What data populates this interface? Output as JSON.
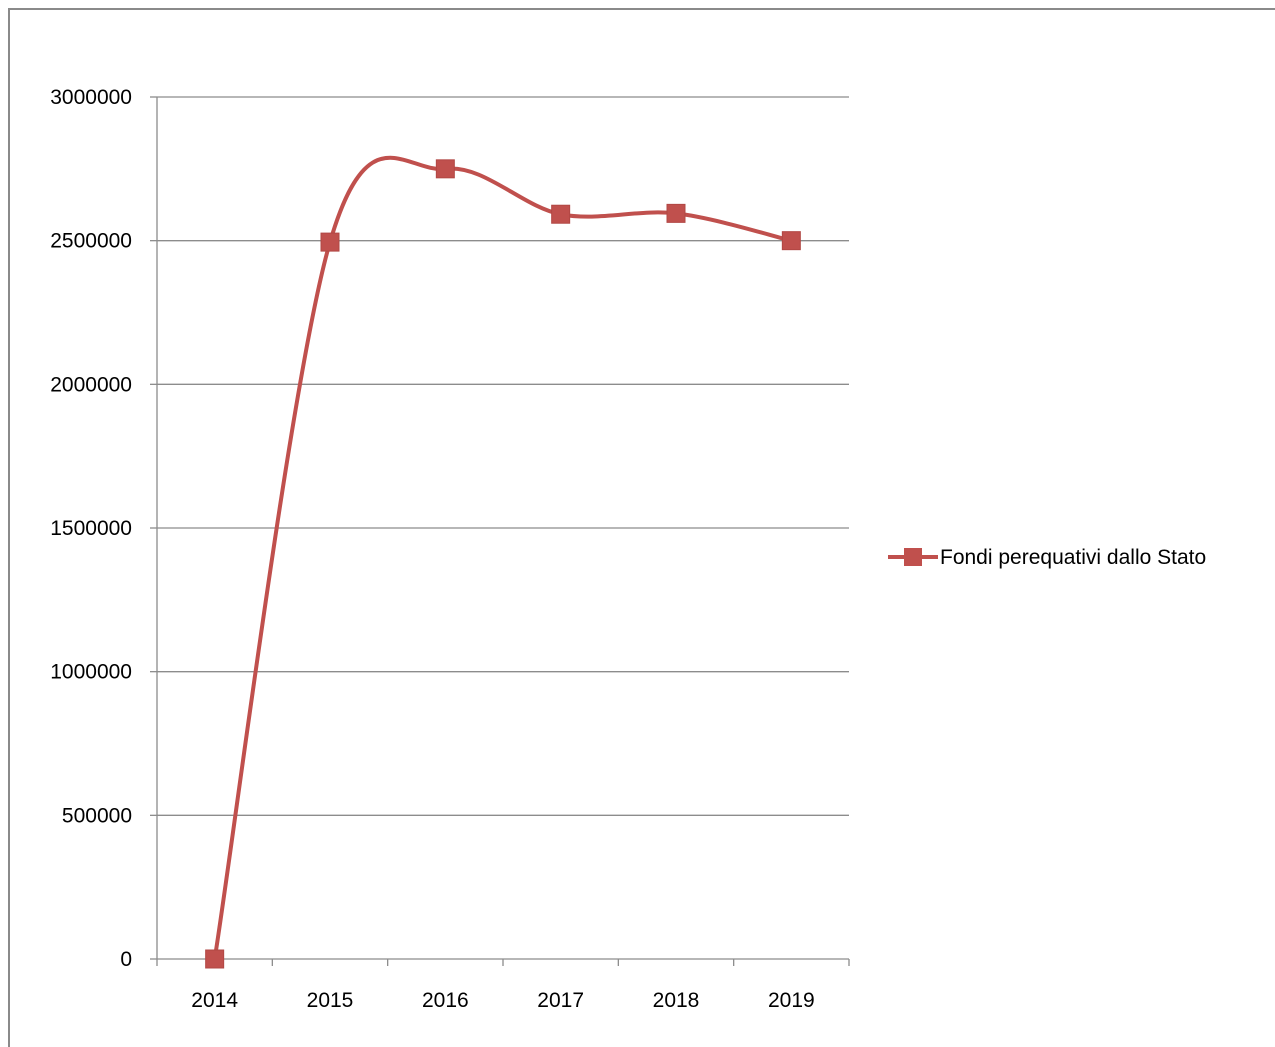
{
  "chart_data": {
    "type": "line",
    "smooth": true,
    "categories": [
      "2014",
      "2015",
      "2016",
      "2017",
      "2018",
      "2019"
    ],
    "series": [
      {
        "name": "Fondi perequativi dallo Stato",
        "values": [
          0,
          2495000,
          2750000,
          2592000,
          2595000,
          2500000
        ],
        "color": "#C0504D",
        "marker": "square"
      }
    ],
    "yticks": [
      "0",
      "500000",
      "1000000",
      "1500000",
      "2000000",
      "2500000",
      "3000000"
    ],
    "ylim": [
      0,
      3000000
    ],
    "grid": "horizontal",
    "legend": "right",
    "title": "",
    "xlabel": "",
    "ylabel": ""
  }
}
